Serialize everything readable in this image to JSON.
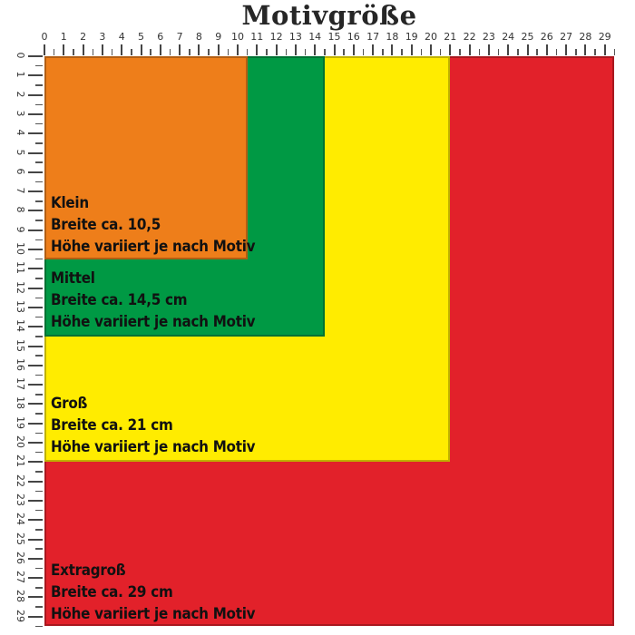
{
  "title": "Motivgröße",
  "ruler": {
    "unit": "cm",
    "top_numbers": [
      "0",
      "1",
      "2",
      "3",
      "4",
      "5",
      "6",
      "7",
      "8",
      "9",
      "10",
      "11",
      "12",
      "13",
      "14",
      "15",
      "16",
      "17",
      "18",
      "19",
      "20",
      "21",
      "22",
      "23",
      "24",
      "25",
      "26",
      "27",
      "28",
      "29"
    ],
    "left_numbers": [
      "0",
      "1",
      "2",
      "3",
      "4",
      "5",
      "6",
      "7",
      "8",
      "9",
      "10",
      "11",
      "12",
      "13",
      "14",
      "15",
      "16",
      "17",
      "18",
      "19",
      "20",
      "21",
      "22",
      "23",
      "24",
      "25",
      "26",
      "27",
      "28",
      "29"
    ]
  },
  "sizes": [
    {
      "name": "Klein",
      "width_text": "Breite ca. 10,5",
      "height_text": "Höhe variiert je nach Motiv",
      "width_cm": 10.5,
      "color": "#EE7E1A"
    },
    {
      "name": "Mittel",
      "width_text": "Breite ca. 14,5 cm",
      "height_text": "Höhe variiert je nach Motiv",
      "width_cm": 14.5,
      "color": "#009944"
    },
    {
      "name": "Groß",
      "width_text": "Breite ca. 21 cm",
      "height_text": "Höhe variiert je nach Motiv",
      "width_cm": 21,
      "color": "#FFEC00"
    },
    {
      "name": "Extragroß",
      "width_text": "Breite ca. 29 cm",
      "height_text": "Höhe variiert je nach Motiv",
      "width_cm": 29,
      "color": "#E2212A"
    }
  ],
  "colors": {
    "background": "#FFFFFF",
    "ruler_marks": "#454545",
    "label_text": "#111111",
    "title_text": "#262626"
  }
}
